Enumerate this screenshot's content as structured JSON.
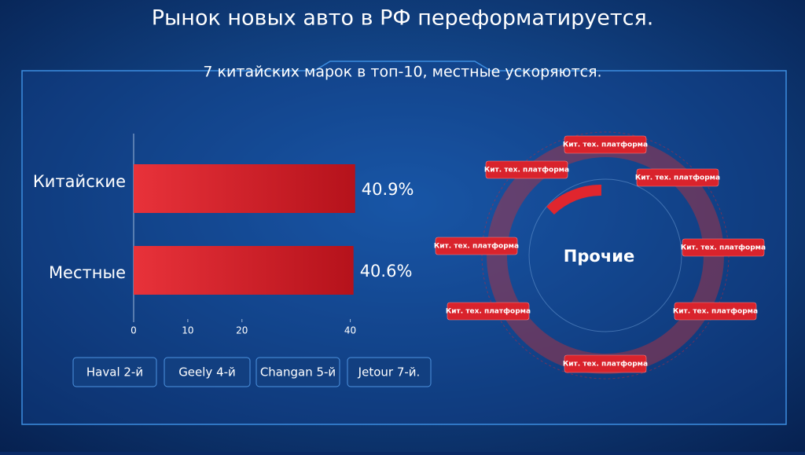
{
  "header": {
    "title": "Рынок новых авто в РФ переформатируется.",
    "subtitle": "7 китайских марок в топ-10, местные ускоряются."
  },
  "chart_data": {
    "type": "hbar",
    "categories": [
      "Китайские",
      "Местные"
    ],
    "values": [
      40.9,
      40.6
    ],
    "value_labels": [
      "40.9%",
      "40.6%"
    ],
    "color": "#e0262e",
    "xlim": [
      0,
      45
    ],
    "xticks": [
      0,
      10,
      20,
      40
    ]
  },
  "brands": [
    "Haval 2-й",
    "Geely 4-й",
    "Changan 5-й",
    "Jetour 7-й."
  ],
  "ring": {
    "center": "Прочие",
    "labels": [
      "Кит. тех. платформа",
      "Кит. тех. платформа",
      "Кит. тех. платформа",
      "Кит. тех. платформа",
      "Кит. тех. платформа",
      "Кит. тех. платформа",
      "Кит. тех. платформа",
      "Кит. тех. платформа"
    ]
  }
}
